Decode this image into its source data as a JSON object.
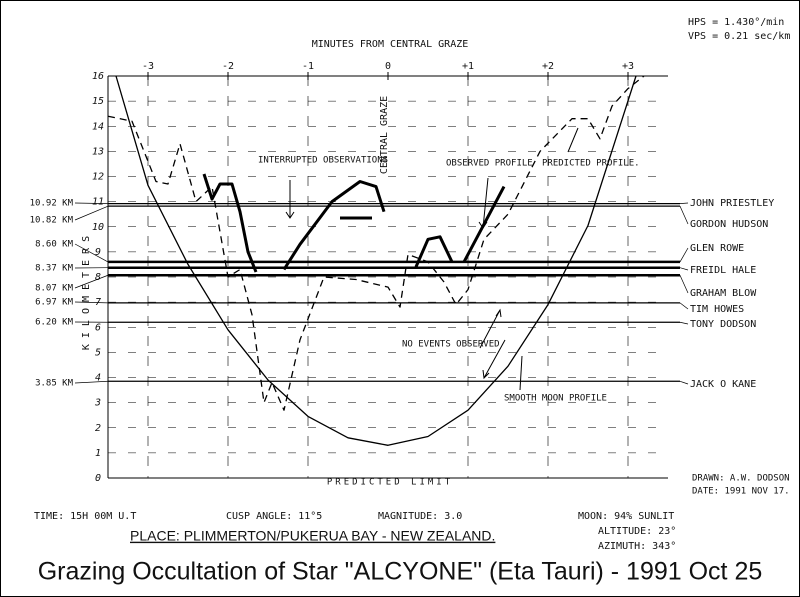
{
  "header": {
    "hps": "HPS = 1.430°/min",
    "vps": "VPS = 0.21 sec/km"
  },
  "chart_data": {
    "type": "line",
    "title": "Grazing Occultation of Star \"ALCYONE\" (Eta Tauri) - 1991 Oct 25",
    "x_label": "MINUTES FROM CENTRAL GRAZE",
    "y_label": "KILOMETERS",
    "xlim": [
      -3.5,
      3.5
    ],
    "xticks": [
      -3,
      -2,
      -1,
      0,
      {
        "value": 1,
        "label": "+1"
      },
      {
        "value": 2,
        "label": "+2"
      },
      {
        "value": 3,
        "label": "+3"
      }
    ],
    "ylim": [
      0,
      16
    ],
    "yticks": [
      0,
      1,
      2,
      3,
      4,
      5,
      6,
      7,
      8,
      9,
      10,
      11,
      12,
      13,
      14,
      15,
      16
    ],
    "grid": true,
    "series": [
      {
        "name": "SMOOTH MOON PROFILE",
        "color": "#000",
        "dashed": false,
        "weight": "normal",
        "x": [
          -3.4,
          -3.0,
          -2.5,
          -2.0,
          -1.5,
          -1.0,
          -0.5,
          0,
          0.5,
          1.0,
          1.5,
          2.0,
          2.5,
          3.1
        ],
        "values": [
          16,
          11.65,
          8.5,
          5.9,
          3.9,
          2.45,
          1.6,
          1.3,
          1.65,
          2.7,
          4.45,
          6.9,
          10.05,
          16
        ]
      },
      {
        "name": "PREDICTED PROFILE.",
        "color": "#000",
        "dashed": true,
        "weight": "normal",
        "x": [
          -3.5,
          -3.2,
          -2.9,
          -2.75,
          -2.6,
          -2.4,
          -2.2,
          -2.0,
          -1.85,
          -1.7,
          -1.55,
          -1.45,
          -1.3,
          -1.1,
          -0.8,
          -0.4,
          0,
          0.15,
          0.25,
          0.5,
          0.7,
          0.85,
          1.0,
          1.2,
          1.5,
          1.9,
          2.3,
          2.5,
          2.65,
          2.8,
          3.0,
          3.2
        ],
        "values": [
          14.4,
          14.2,
          11.8,
          11.7,
          13.3,
          11.0,
          11.6,
          8.0,
          8.3,
          6.5,
          3.0,
          3.8,
          2.7,
          5.5,
          8.0,
          7.9,
          7.6,
          6.8,
          8.9,
          8.6,
          7.8,
          6.9,
          7.5,
          9.5,
          10.5,
          13.0,
          14.3,
          14.3,
          13.5,
          14.8,
          15.5,
          16
        ]
      },
      {
        "name": "OBSERVED PROFILE",
        "color": "#000",
        "dashed": false,
        "weight": "bold",
        "x": [
          -2.3,
          -2.2,
          -2.1,
          -1.95,
          -1.85,
          -1.75,
          -1.65,
          -1.5,
          -1.3,
          -1.1,
          -0.7,
          -0.35,
          -0.15,
          -0.05,
          -0.1,
          -0.6,
          -0.2,
          0.1,
          0.35,
          0.5,
          0.65,
          0.8,
          0.9,
          0.95,
          1.45
        ],
        "values": [
          12.1,
          11.1,
          11.7,
          11.7,
          10.6,
          9.0,
          8.2,
          null,
          8.3,
          9.3,
          11.0,
          11.8,
          11.6,
          10.6,
          null,
          10.35,
          10.35,
          null,
          8.4,
          9.5,
          9.6,
          8.6,
          null,
          8.6,
          11.6
        ]
      }
    ],
    "chords": {
      "names": [
        "JOHN PRIESTLEY",
        "GORDON HUDSON",
        "GLEN ROWE",
        "FREIDL HALE",
        "GRAHAM BLOW",
        "TIM HOWES",
        "TONY DODSON",
        "JACK O KANE"
      ],
      "values": [
        10.92,
        10.82,
        8.6,
        8.37,
        8.07,
        6.97,
        6.2,
        3.85
      ],
      "value_labels": [
        "10.92 KM",
        "10.82 KM",
        "8.60 KM",
        "8.37 KM",
        "8.07 KM",
        "6.97 KM",
        "6.20 KM",
        "3.85 KM"
      ]
    },
    "annotations": [
      "INTERRUPTED OBSERVATIONS",
      "CENTRAL GRAZE",
      "NO EVENTS OBSERVED",
      "PREDICTED LIMIT"
    ]
  },
  "footer": {
    "time": "TIME: 15H 00M U.T",
    "cusp": "CUSP ANGLE: 11°5",
    "magnitude": "MAGNITUDE: 3.0",
    "moon": "MOON: 94% SUNLIT",
    "altitude": "ALTITUDE: 23°",
    "azimuth": "AZIMUTH: 343°",
    "drawn": "DRAWN: A.W. DODSON",
    "date": "DATE: 1991 NOV 17.",
    "place": "PLACE: PLIMMERTON/PUKERUA BAY - NEW ZEALAND."
  }
}
